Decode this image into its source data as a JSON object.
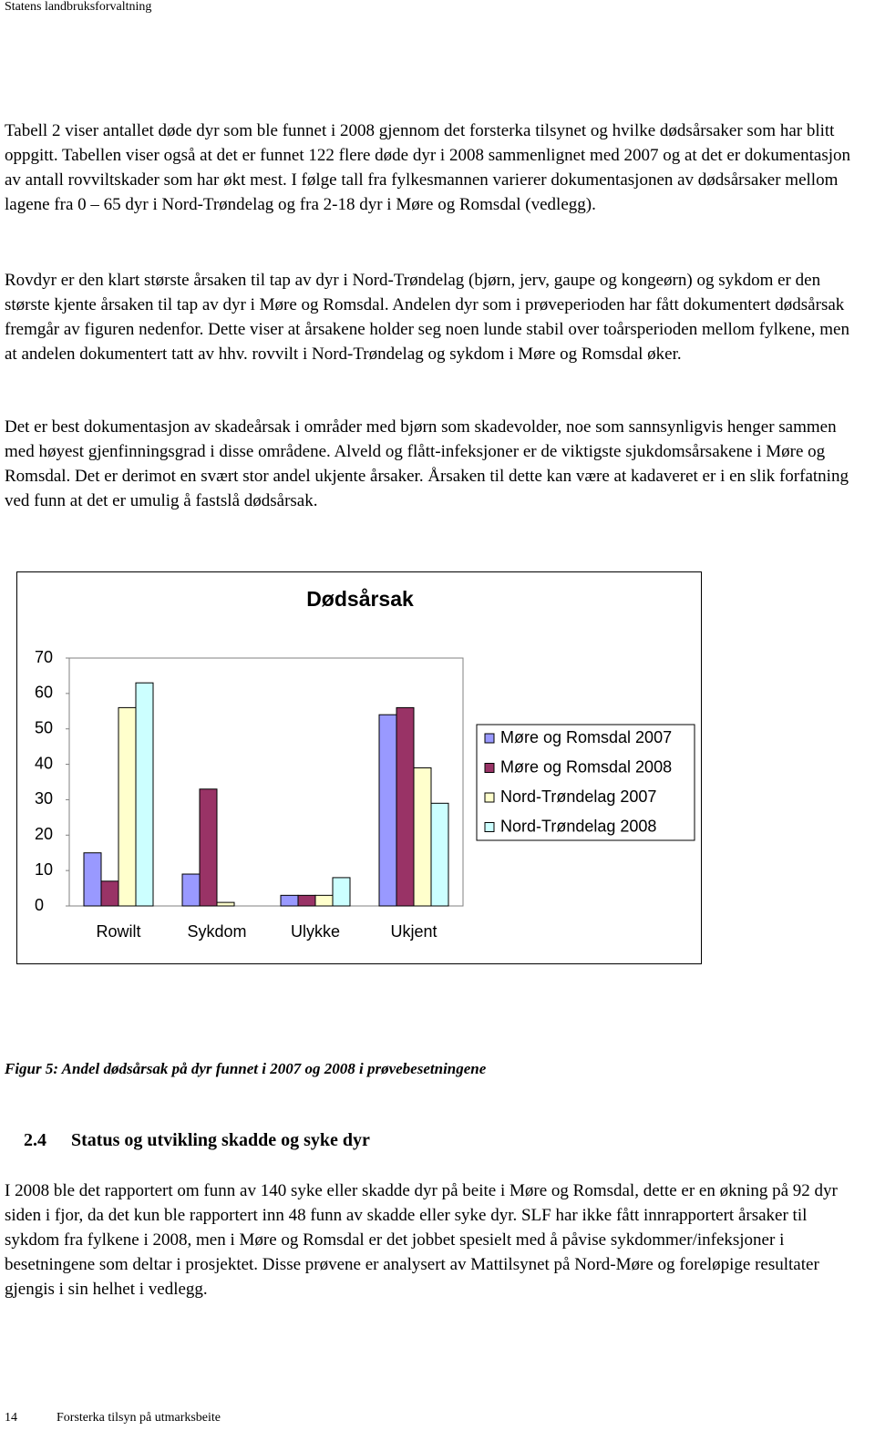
{
  "header": "Statens landbruksforvaltning",
  "paragraphs": [
    "Tabell 2 viser antallet døde dyr som ble funnet i 2008 gjennom det forsterka tilsynet og hvilke dødsårsaker som har blitt oppgitt. Tabellen viser også at det er funnet 122 flere døde dyr i 2008 sammenlignet med 2007 og at det er dokumentasjon av antall rovviltskader som har økt mest. I følge tall fra fylkesmannen varierer dokumentasjonen av dødsårsaker mellom lagene fra 0 – 65 dyr i Nord-Trøndelag og fra 2-18 dyr i Møre og Romsdal (vedlegg).",
    "Rovdyr er den klart største årsaken til tap av dyr i Nord-Trøndelag (bjørn, jerv, gaupe og kongeørn) og sykdom er den største kjente årsaken til tap av dyr i Møre og Romsdal. Andelen dyr som i prøveperioden har fått dokumentert dødsårsak fremgår av figuren nedenfor. Dette viser at årsakene holder seg noen lunde stabil over toårsperioden mellom fylkene, men at andelen dokumentert tatt av hhv. rovvilt i Nord-Trøndelag og sykdom i Møre og Romsdal øker.",
    "Det er best dokumentasjon av skadeårsak i områder med bjørn som skadevolder, noe som sannsynligvis henger sammen med høyest gjenfinningsgrad i disse områdene. Alveld og flått-infeksjoner er de viktigste sjukdomsårsakene i Møre og Romsdal. Det er derimot en svært stor andel ukjente årsaker. Årsaken til dette kan være at kadaveret er i en slik forfatning ved funn at det er umulig å fastslå dødsårsak."
  ],
  "chart_data": {
    "type": "bar",
    "title": "Dødsårsak",
    "categories": [
      "Rowilt",
      "Sykdom",
      "Ulykke",
      "Ukjent"
    ],
    "series": [
      {
        "name": "Møre og Romsdal 2007",
        "color": "#9999ff",
        "values": [
          15,
          9,
          3,
          54
        ]
      },
      {
        "name": "Møre og Romsdal 2008",
        "color": "#993366",
        "values": [
          7,
          33,
          3,
          56
        ]
      },
      {
        "name": "Nord-Trøndelag 2007",
        "color": "#ffffcc",
        "values": [
          56,
          1,
          3,
          39
        ]
      },
      {
        "name": "Nord-Trøndelag 2008",
        "color": "#ccffff",
        "values": [
          63,
          0,
          8,
          29
        ]
      }
    ],
    "ylim": [
      0,
      70
    ],
    "yticks": [
      0,
      10,
      20,
      30,
      40,
      50,
      60,
      70
    ],
    "grid": false,
    "legend": "right"
  },
  "caption": "Figur 5: Andel dødsårsak på dyr funnet i 2007 og 2008 i prøvebesetningene",
  "section": {
    "number": "2.4",
    "title": "Status og utvikling skadde og syke dyr"
  },
  "section_paragraph": "I 2008 ble det rapportert om funn av 140 syke eller skadde dyr på beite i Møre og Romsdal, dette er en økning på 92 dyr siden i fjor, da det kun ble rapportert inn 48 funn av skadde eller syke dyr. SLF har ikke fått innrapportert årsaker til sykdom fra fylkene i 2008, men i Møre og Romsdal er det jobbet spesielt med å påvise sykdommer/infeksjoner i besetningene som deltar i prosjektet. Disse prøvene er analysert av Mattilsynet på Nord-Møre og foreløpige resultater gjengis i sin helhet i vedlegg.",
  "footer": {
    "page": "14",
    "title": "Forsterka tilsyn på utmarksbeite"
  }
}
